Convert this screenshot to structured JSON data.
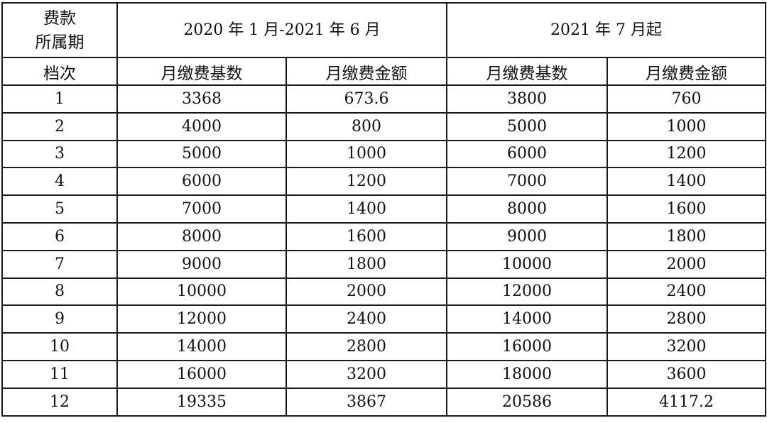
{
  "table": {
    "corner_top": [
      "费款",
      "所属期"
    ],
    "corner_bottom": "档次",
    "periods": [
      "2020 年 1 月-2021 年 6 月",
      "2021 年 7 月起"
    ],
    "subheaders": [
      "月缴费基数",
      "月缴费金额",
      "月缴费基数",
      "月缴费金额"
    ],
    "rows": [
      [
        "1",
        "3368",
        "673.6",
        "3800",
        "760"
      ],
      [
        "2",
        "4000",
        "800",
        "5000",
        "1000"
      ],
      [
        "3",
        "5000",
        "1000",
        "6000",
        "1200"
      ],
      [
        "4",
        "6000",
        "1200",
        "7000",
        "1400"
      ],
      [
        "5",
        "7000",
        "1400",
        "8000",
        "1600"
      ],
      [
        "6",
        "8000",
        "1600",
        "9000",
        "1800"
      ],
      [
        "7",
        "9000",
        "1800",
        "10000",
        "2000"
      ],
      [
        "8",
        "10000",
        "2000",
        "12000",
        "2400"
      ],
      [
        "9",
        "12000",
        "2400",
        "14000",
        "2800"
      ],
      [
        "10",
        "14000",
        "2800",
        "16000",
        "3200"
      ],
      [
        "11",
        "16000",
        "3200",
        "18000",
        "3600"
      ],
      [
        "12",
        "19335",
        "3867",
        "20586",
        "4117.2"
      ]
    ]
  }
}
